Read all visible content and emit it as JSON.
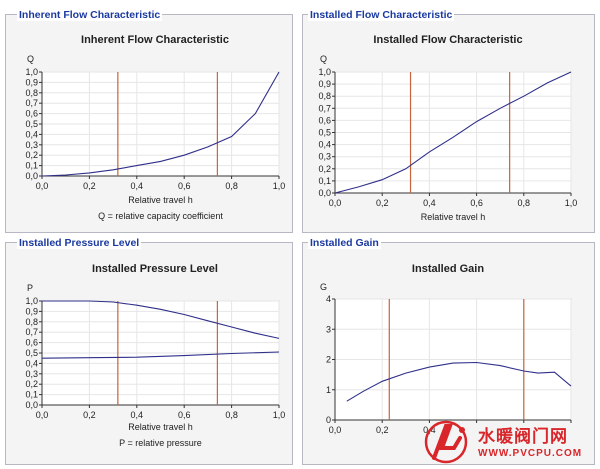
{
  "panels": [
    {
      "legend": "Inherent Flow Characteristic"
    },
    {
      "legend": "Installed Flow Characteristic"
    },
    {
      "legend": "Installed Pressure Level"
    },
    {
      "legend": "Installed Gain"
    }
  ],
  "watermark": {
    "text": "水暖阀门网",
    "url": "WWW.PVCPU.COM"
  },
  "chart_data": [
    {
      "type": "line",
      "title": "Inherent Flow Characteristic",
      "ylabel": "Q",
      "xlabel": "Relative travel h",
      "footnote": "Q = relative capacity coefficient",
      "xlim": [
        0,
        1.0
      ],
      "ylim": [
        0,
        1.0
      ],
      "xticks": [
        "0,0",
        "0,2",
        "0,4",
        "0,6",
        "0,8",
        "1,0"
      ],
      "yticks": [
        "0,0",
        "0,1",
        "0,2",
        "0,3",
        "0,4",
        "0,5",
        "0,6",
        "0,7",
        "0,8",
        "0,9",
        "1,0"
      ],
      "markers": [
        0.32,
        0.74
      ],
      "series": [
        {
          "x": [
            0,
            0.1,
            0.2,
            0.3,
            0.4,
            0.5,
            0.6,
            0.7,
            0.8,
            0.9,
            1.0
          ],
          "y": [
            0.0,
            0.01,
            0.03,
            0.06,
            0.1,
            0.14,
            0.2,
            0.28,
            0.38,
            0.6,
            1.0
          ]
        }
      ]
    },
    {
      "type": "line",
      "title": "Installed Flow Characteristic",
      "ylabel": "Q",
      "xlabel": "Relative travel h",
      "footnote": "",
      "xlim": [
        0,
        1.0
      ],
      "ylim": [
        0,
        1.0
      ],
      "xticks": [
        "0,0",
        "0,2",
        "0,4",
        "0,6",
        "0,8",
        "1,0"
      ],
      "yticks": [
        "0,0",
        "0,1",
        "0,2",
        "0,3",
        "0,4",
        "0,5",
        "0,6",
        "0,7",
        "0,8",
        "0,9",
        "1,0"
      ],
      "markers": [
        0.32,
        0.74
      ],
      "series": [
        {
          "x": [
            0,
            0.1,
            0.2,
            0.3,
            0.4,
            0.5,
            0.6,
            0.7,
            0.8,
            0.9,
            1.0
          ],
          "y": [
            0.0,
            0.05,
            0.11,
            0.2,
            0.34,
            0.46,
            0.59,
            0.7,
            0.8,
            0.91,
            1.0
          ]
        }
      ]
    },
    {
      "type": "line",
      "title": "Installed Pressure Level",
      "ylabel": "P",
      "xlabel": "Relative travel h",
      "footnote": "P = relative pressure",
      "xlim": [
        0,
        1.0
      ],
      "ylim": [
        0,
        1.0
      ],
      "xticks": [
        "0,0",
        "0,2",
        "0,4",
        "0,6",
        "0,8",
        "1,0"
      ],
      "yticks": [
        "0,0",
        "0,1",
        "0,2",
        "0,3",
        "0,4",
        "0,5",
        "0,6",
        "0,7",
        "0,8",
        "0,9",
        "1,0"
      ],
      "markers": [
        0.32,
        0.74
      ],
      "series": [
        {
          "x": [
            0,
            0.1,
            0.2,
            0.3,
            0.4,
            0.5,
            0.6,
            0.7,
            0.8,
            0.9,
            1.0
          ],
          "y": [
            1.0,
            1.0,
            1.0,
            0.99,
            0.96,
            0.92,
            0.87,
            0.81,
            0.75,
            0.69,
            0.64
          ]
        },
        {
          "x": [
            0,
            0.2,
            0.4,
            0.6,
            0.8,
            1.0
          ],
          "y": [
            0.45,
            0.455,
            0.46,
            0.475,
            0.495,
            0.51
          ]
        }
      ]
    },
    {
      "type": "line",
      "title": "Installed Gain",
      "ylabel": "G",
      "xlabel": "",
      "footnote": "",
      "xlim": [
        0,
        1.0
      ],
      "ylim": [
        0,
        4
      ],
      "xticks": [
        "0,0",
        "0,2",
        "0,4",
        "",
        "",
        ""
      ],
      "yticks": [
        "0",
        "1",
        "2",
        "3",
        "4"
      ],
      "markers": [
        0.23,
        0.8
      ],
      "series": [
        {
          "x": [
            0.05,
            0.12,
            0.2,
            0.3,
            0.4,
            0.5,
            0.6,
            0.7,
            0.8,
            0.86,
            0.93,
            1.0
          ],
          "y": [
            0.62,
            0.95,
            1.28,
            1.55,
            1.75,
            1.88,
            1.9,
            1.8,
            1.62,
            1.55,
            1.58,
            1.12
          ]
        }
      ]
    }
  ]
}
